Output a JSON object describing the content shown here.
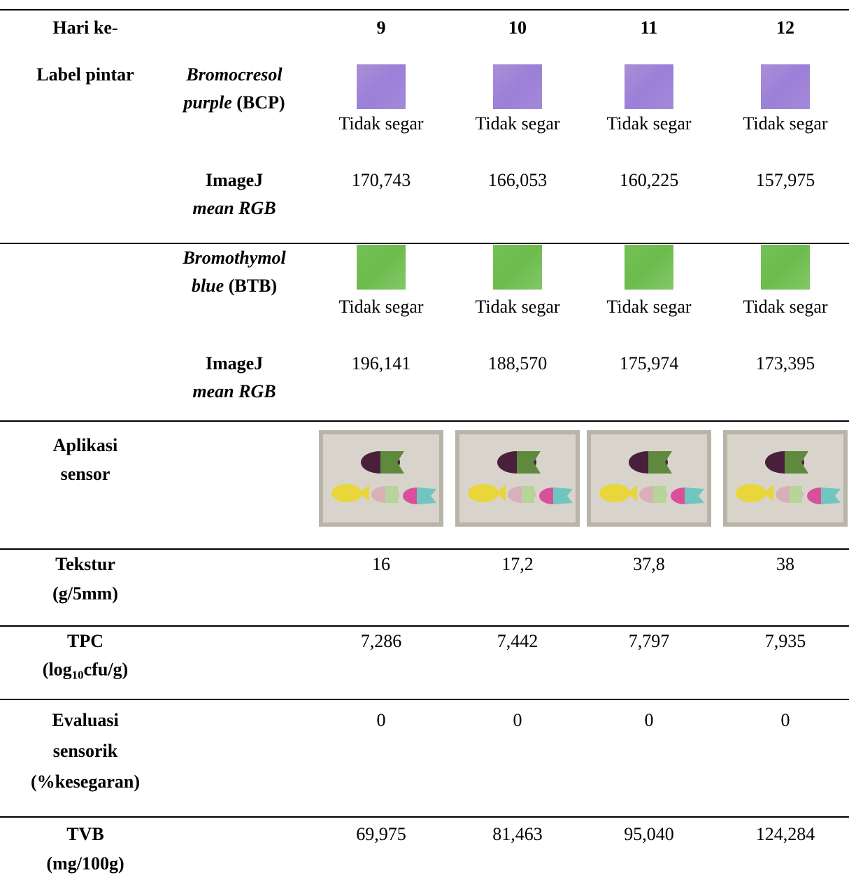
{
  "header": {
    "label": "Hari ke-",
    "days": [
      "9",
      "10",
      "11",
      "12"
    ]
  },
  "label_pintar": {
    "label": "Label pintar",
    "indicators": [
      {
        "name": {
          "line1": "Bromocresol",
          "line2_italic": "purple",
          "line2": "(BCP)"
        },
        "status": [
          "Tidak segar",
          "Tidak segar",
          "Tidak segar",
          "Tidak segar"
        ],
        "measure": {
          "line1": "ImageJ",
          "line2": "mean RGB"
        },
        "values": [
          "170,743",
          "166,053",
          "160,225",
          "157,975"
        ]
      },
      {
        "name": {
          "line1": "Bromothymol",
          "line2_italic": "blue",
          "line2": "(BTB)"
        },
        "status": [
          "Tidak segar",
          "Tidak segar",
          "Tidak segar",
          "Tidak segar"
        ],
        "measure": {
          "line1": "ImageJ",
          "line2": "mean RGB"
        },
        "values": [
          "196,141",
          "188,570",
          "175,974",
          "173,395"
        ]
      }
    ]
  },
  "aplikasi_sensor": {
    "label": [
      "Aplikasi",
      "sensor"
    ]
  },
  "rows": [
    {
      "label": [
        "Tekstur",
        "(g/5mm)"
      ],
      "values": [
        "16",
        "17,2",
        "37,8",
        "38"
      ]
    },
    {
      "label": [
        "TPC"
      ],
      "unit": {
        "pre": "(log",
        "sub": "10",
        "post": "cfu/g)"
      },
      "values": [
        "7,286",
        "7,442",
        "7,797",
        "7,935"
      ]
    },
    {
      "label": [
        "Evaluasi",
        "sensorik",
        "(%kesegaran)"
      ],
      "values": [
        "0",
        "0",
        "0",
        "0"
      ]
    },
    {
      "label": [
        "TVB",
        "(mg/100g)"
      ],
      "values": [
        "69,975",
        "81,463",
        "95,040",
        "124,284"
      ]
    }
  ]
}
